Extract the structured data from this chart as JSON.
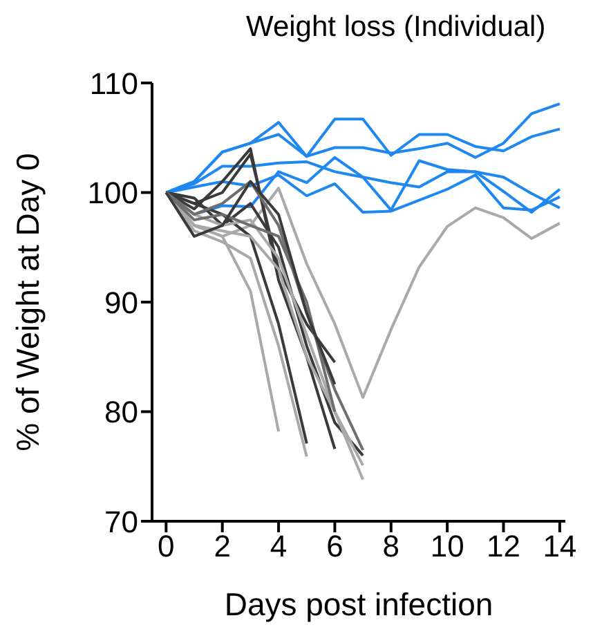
{
  "chart_data": {
    "type": "line",
    "title": "Weight loss (Individual)",
    "xlabel": "Days post infection",
    "ylabel": "% of Weight at Day 0",
    "xlim": [
      -0.5,
      14.2
    ],
    "xticks": [
      0,
      2,
      4,
      6,
      8,
      10,
      12,
      14
    ],
    "ylim": [
      70,
      110
    ],
    "yticks": [
      70,
      80,
      90,
      100,
      110
    ],
    "grid": false,
    "marker": "none",
    "line_style": "solid",
    "series": [
      {
        "color": "#1e88f0",
        "x": [
          0,
          1,
          2,
          3,
          4,
          5,
          6,
          7,
          8,
          9,
          10,
          11,
          12,
          13,
          14
        ],
        "values": [
          100,
          101,
          103.7,
          104.5,
          106.4,
          103.3,
          106.7,
          106.7,
          103.4,
          105.3,
          105.3,
          104.2,
          103.8,
          105.1,
          105.8
        ]
      },
      {
        "color": "#1e88f0",
        "x": [
          0,
          1,
          2,
          3,
          4,
          5,
          6,
          7,
          8,
          9,
          10,
          11,
          12,
          13,
          14
        ],
        "values": [
          100,
          101,
          103.7,
          104.5,
          105.3,
          103.3,
          104.1,
          104.1,
          103.6,
          104,
          104.5,
          103.2,
          104.5,
          107.2,
          108.1
        ]
      },
      {
        "color": "#1e88f0",
        "x": [
          0,
          1,
          2,
          3,
          4,
          5,
          6,
          7,
          8,
          9,
          10,
          11,
          12,
          13,
          14
        ],
        "values": [
          100,
          98,
          98.8,
          98.7,
          101.9,
          100.9,
          103.2,
          101.4,
          98.4,
          102.9,
          102.1,
          101.9,
          100.1,
          98.2,
          100.3
        ]
      },
      {
        "color": "#1e88f0",
        "x": [
          0,
          1,
          2,
          3,
          4,
          5,
          6,
          7,
          8,
          9,
          10,
          11,
          12,
          13,
          14
        ],
        "values": [
          100,
          100.8,
          102.4,
          102.4,
          102.7,
          102.8,
          101.9,
          101.4,
          100.9,
          100.5,
          101.9,
          101.9,
          101.4,
          99.9,
          98.6
        ]
      },
      {
        "color": "#1e88f0",
        "x": [
          0,
          1,
          2,
          3,
          4,
          5,
          6,
          7,
          8,
          9,
          10,
          11,
          12,
          13,
          14
        ],
        "values": [
          100,
          100.5,
          101,
          100.6,
          101.6,
          99.7,
          100.8,
          98.2,
          98.3,
          99.3,
          100.3,
          101.6,
          98.6,
          98.4,
          99.6
        ]
      },
      {
        "color": "#a9a9a9",
        "x": [
          0,
          1,
          2,
          3,
          4,
          5,
          6,
          7,
          8,
          9,
          10,
          11,
          12,
          13,
          14
        ],
        "values": [
          100,
          97,
          96,
          97,
          100.4,
          93.5,
          88,
          81.3,
          87.5,
          93.2,
          96.9,
          98.6,
          97.7,
          95.8,
          97.2
        ]
      },
      {
        "color": "#a9a9a9",
        "x": [
          0,
          1,
          2,
          3,
          4
        ],
        "values": [
          100,
          97,
          96,
          91,
          78.2
        ]
      },
      {
        "color": "#a9a9a9",
        "x": [
          0,
          1,
          2,
          3,
          4,
          5
        ],
        "values": [
          100,
          96.5,
          95.5,
          94,
          86,
          75.9
        ]
      },
      {
        "color": "#3a3a3a",
        "x": [
          0,
          1,
          2,
          3,
          4,
          5
        ],
        "values": [
          100,
          99,
          98,
          96,
          88,
          77.1
        ]
      },
      {
        "color": "#3a3a3a",
        "x": [
          0,
          1,
          2,
          3,
          4,
          5,
          6
        ],
        "values": [
          100,
          98.5,
          101,
          104,
          92,
          85,
          76.6
        ]
      },
      {
        "color": "#3a3a3a",
        "x": [
          0,
          1,
          2,
          3,
          4,
          5,
          6
        ],
        "values": [
          100,
          99,
          100,
          103.5,
          93,
          88,
          84.5
        ]
      },
      {
        "color": "#3a3a3a",
        "x": [
          0,
          1,
          2,
          3,
          4,
          5,
          6,
          7
        ],
        "values": [
          100,
          99.5,
          97,
          99,
          95,
          86,
          79,
          76
        ]
      },
      {
        "color": "#a9a9a9",
        "x": [
          0,
          1,
          2,
          3,
          4,
          5,
          6,
          7
        ],
        "values": [
          100,
          98,
          97,
          97.5,
          94,
          87,
          80,
          73.8
        ]
      },
      {
        "color": "#a9a9a9",
        "x": [
          0,
          1,
          2,
          3,
          4,
          5,
          6,
          7
        ],
        "values": [
          100,
          97,
          96.5,
          96,
          93,
          85,
          80,
          75.1
        ]
      },
      {
        "color": "#6e6e6e",
        "x": [
          0,
          1,
          2,
          3,
          4,
          5,
          6,
          7
        ],
        "values": [
          100,
          98,
          99,
          101,
          97,
          89,
          82,
          76.5
        ]
      },
      {
        "color": "#6e6e6e",
        "x": [
          0,
          1,
          2,
          3,
          4,
          5,
          6
        ],
        "values": [
          100,
          97.5,
          98,
          97,
          96,
          90,
          80
        ]
      },
      {
        "color": "#3a3a3a",
        "x": [
          0,
          1,
          2,
          3,
          4,
          5,
          6
        ],
        "values": [
          100,
          96,
          97,
          101,
          98,
          89,
          82.5
        ]
      }
    ]
  }
}
